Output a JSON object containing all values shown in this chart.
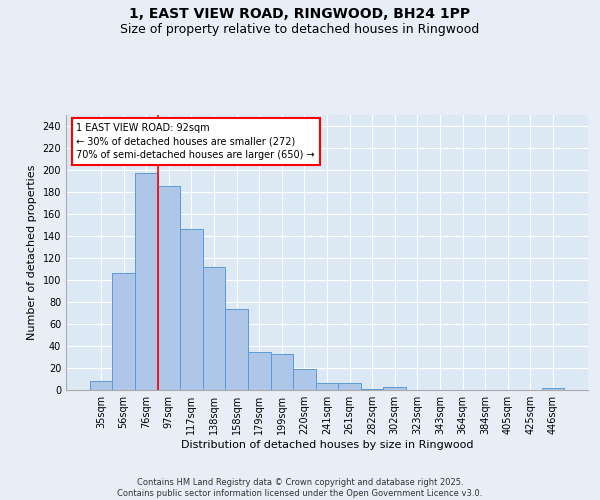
{
  "title_line1": "1, EAST VIEW ROAD, RINGWOOD, BH24 1PP",
  "title_line2": "Size of property relative to detached houses in Ringwood",
  "xlabel": "Distribution of detached houses by size in Ringwood",
  "ylabel": "Number of detached properties",
  "categories": [
    "35sqm",
    "56sqm",
    "76sqm",
    "97sqm",
    "117sqm",
    "138sqm",
    "158sqm",
    "179sqm",
    "199sqm",
    "220sqm",
    "241sqm",
    "261sqm",
    "282sqm",
    "302sqm",
    "323sqm",
    "343sqm",
    "364sqm",
    "384sqm",
    "405sqm",
    "425sqm",
    "446sqm"
  ],
  "values": [
    8,
    106,
    197,
    185,
    146,
    112,
    74,
    35,
    33,
    19,
    6,
    6,
    1,
    3,
    0,
    0,
    0,
    0,
    0,
    0,
    2
  ],
  "bar_color": "#aec6e8",
  "bar_edge_color": "#5b9bd5",
  "bg_color": "#dce9f5",
  "grid_color": "#ffffff",
  "fig_bg_color": "#e8eef7",
  "vline_color": "red",
  "vline_x_index": 2.5,
  "annotation_text": "1 EAST VIEW ROAD: 92sqm\n← 30% of detached houses are smaller (272)\n70% of semi-detached houses are larger (650) →",
  "annotation_box_color": "red",
  "ylim": [
    0,
    250
  ],
  "yticks": [
    0,
    20,
    40,
    60,
    80,
    100,
    120,
    140,
    160,
    180,
    200,
    220,
    240
  ],
  "footer": "Contains HM Land Registry data © Crown copyright and database right 2025.\nContains public sector information licensed under the Open Government Licence v3.0.",
  "title_fontsize": 10,
  "subtitle_fontsize": 9,
  "axis_label_fontsize": 8,
  "tick_fontsize": 7,
  "annotation_fontsize": 7
}
